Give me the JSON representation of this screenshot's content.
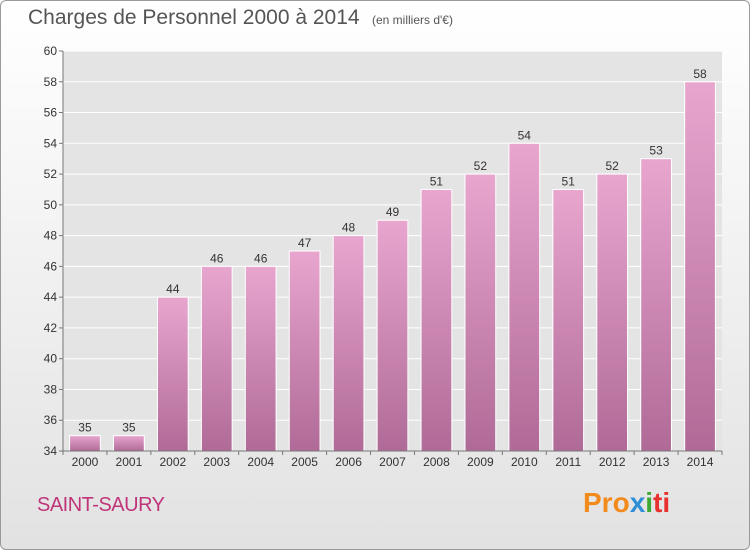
{
  "header": {
    "title": "Charges de Personnel 2000 à 2014",
    "subtitle": "(en milliers d'€)"
  },
  "footer": {
    "commune": "SAINT-SAURY",
    "logo": [
      "Pro",
      "x",
      "i",
      "ti"
    ]
  },
  "colors": {
    "bar_top": "#e8a6cf",
    "bar_bottom": "#b06a97",
    "title_text": "#555555",
    "commune_text": "#c0357a"
  },
  "chart_data": {
    "type": "bar",
    "title": "Charges de Personnel 2000 à 2014",
    "subtitle": "(en milliers d'€)",
    "xlabel": "",
    "ylabel": "",
    "categories": [
      "2000",
      "2001",
      "2002",
      "2003",
      "2004",
      "2005",
      "2006",
      "2007",
      "2008",
      "2009",
      "2010",
      "2011",
      "2012",
      "2013",
      "2014"
    ],
    "values": [
      35,
      35,
      44,
      46,
      46,
      47,
      48,
      49,
      51,
      52,
      54,
      51,
      52,
      53,
      58
    ],
    "ylim": [
      34,
      60
    ],
    "yticks": [
      34,
      36,
      38,
      40,
      42,
      44,
      46,
      48,
      50,
      52,
      54,
      56,
      58,
      60
    ],
    "grid": true,
    "legend": "none"
  }
}
